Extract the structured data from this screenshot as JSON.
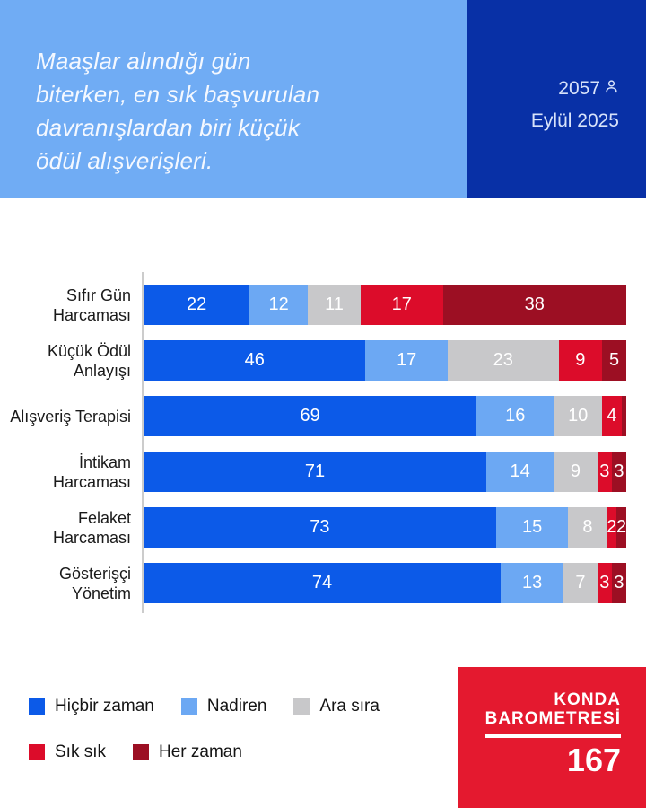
{
  "header": {
    "headline": "Maaşlar alındığı gün\nbiterken, en sık başvurulan\ndavranışlardan biri küçük\nödül alışverişleri.",
    "panel_bg": "#70ACF4",
    "meta_bg": "#0830A6",
    "sample_size": "2057",
    "date": "Eylül 2025"
  },
  "chart_data": {
    "type": "bar",
    "variant": "horizontal-stacked-100",
    "categories": [
      "Sıfır Gün Harcaması",
      "Küçük Ödül Anlayışı",
      "Alışveriş Terapisi",
      "İntikam Harcaması",
      "Felaket Harcaması",
      "Gösterişçi Yönetim"
    ],
    "series": [
      {
        "name": "Hiçbir zaman",
        "color": "#0C5AE8",
        "values": [
          22,
          46,
          69,
          71,
          73,
          74
        ]
      },
      {
        "name": "Nadiren",
        "color": "#6CA8F3",
        "values": [
          12,
          17,
          16,
          14,
          15,
          13
        ]
      },
      {
        "name": "Ara sıra",
        "color": "#C8C8CA",
        "values": [
          11,
          23,
          10,
          9,
          8,
          7
        ]
      },
      {
        "name": "Sık sık",
        "color": "#DC0C2A",
        "values": [
          17,
          9,
          4,
          3,
          2,
          3
        ]
      },
      {
        "name": "Her zaman",
        "color": "#9C0F23",
        "values": [
          38,
          5,
          1,
          3,
          2,
          3
        ]
      }
    ],
    "xlim": [
      0,
      100
    ],
    "value_label_color": "#FFFFFF",
    "value_label_min": 2,
    "grid": false,
    "legend_position": "bottom-left",
    "legend_rows": [
      [
        0,
        1,
        2
      ],
      [
        3,
        4
      ]
    ]
  },
  "footer": {
    "brand_line1": "KONDA",
    "brand_line2": "BAROMETRESİ",
    "issue_number": "167",
    "bg": "#E4192F"
  }
}
